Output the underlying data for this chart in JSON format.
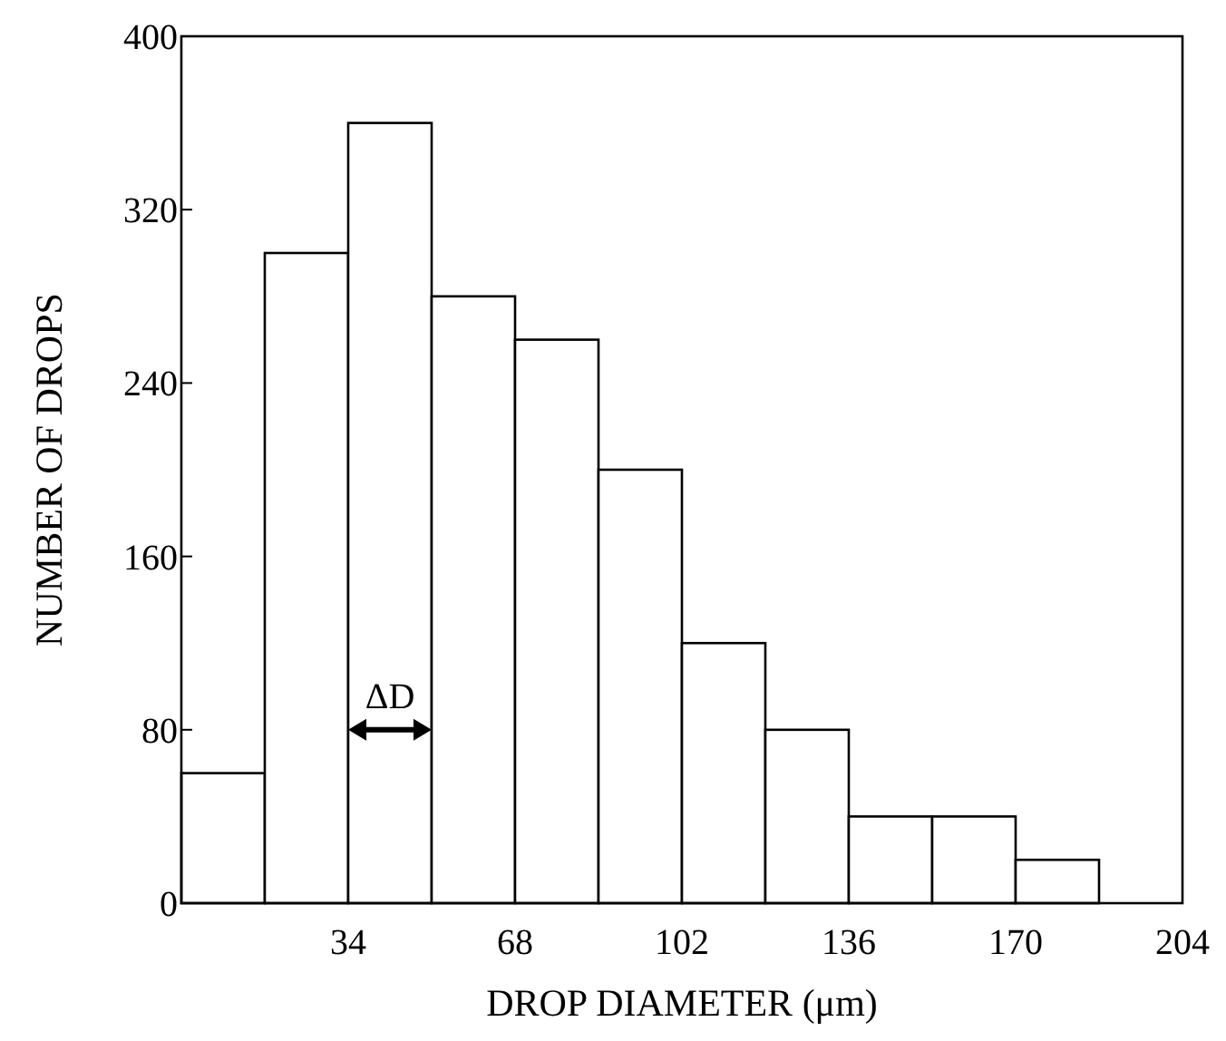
{
  "chart_data": {
    "type": "histogram",
    "xlabel": "DROP DIAMETER (μm)",
    "ylabel": "NUMBER OF DROPS",
    "bins": [
      0,
      17,
      34,
      51,
      68,
      85,
      102,
      119,
      136,
      153,
      170,
      187
    ],
    "values": [
      60,
      300,
      360,
      280,
      260,
      200,
      120,
      80,
      40,
      40,
      20
    ],
    "color": "#ffffff",
    "xlim": [
      0,
      204
    ],
    "xticks": [
      34,
      68,
      102,
      136,
      170,
      204
    ],
    "ylim": [
      0,
      400
    ],
    "yticks": [
      0,
      80,
      160,
      240,
      320,
      400
    ],
    "grid": false,
    "annotations": [
      "ΔD"
    ]
  }
}
